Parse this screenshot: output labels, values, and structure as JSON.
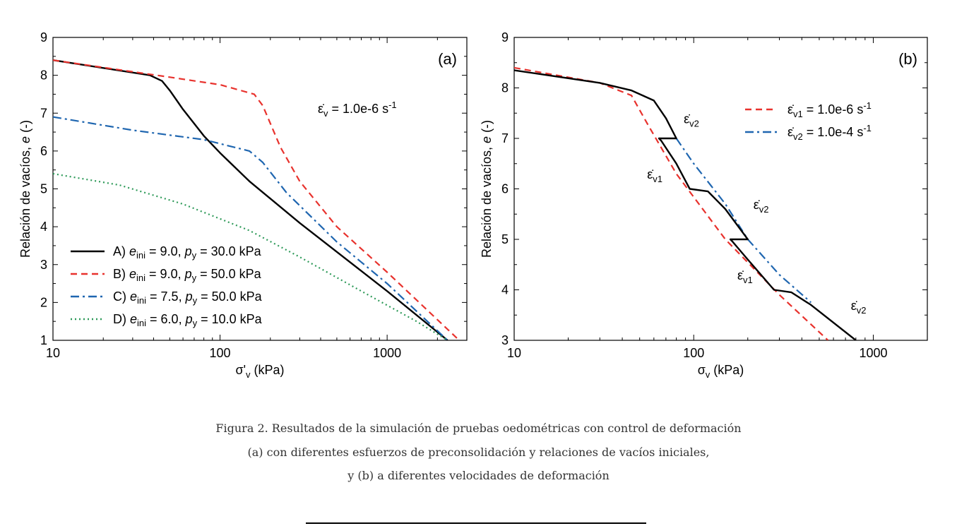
{
  "chart_data": [
    {
      "type": "line",
      "panel_label": "(a)",
      "x_scale": "log",
      "xlim": [
        10,
        3000
      ],
      "ylim": [
        1,
        9
      ],
      "xlabel": "σ'v (kPa)",
      "ylabel": "Relación de vacíos, e (-)",
      "x_ticks": [
        10,
        100,
        1000
      ],
      "x_tick_labels": [
        "10",
        "100",
        "1000"
      ],
      "y_ticks": [
        1,
        2,
        3,
        4,
        5,
        6,
        7,
        8,
        9
      ],
      "y_tick_labels": [
        "1",
        "2",
        "3",
        "4",
        "5",
        "6",
        "7",
        "8",
        "9"
      ],
      "annotation": "ε̇v = 1.0e-6 s-1",
      "legend_position": "bottom-left",
      "series": [
        {
          "name": "A) eini = 9.0, py = 30.0 kPa",
          "color": "#000000",
          "dash": "solid",
          "points": [
            [
              10,
              8.4
            ],
            [
              38,
              8.0
            ],
            [
              45,
              7.85
            ],
            [
              50,
              7.6
            ],
            [
              60,
              7.1
            ],
            [
              80,
              6.4
            ],
            [
              100,
              5.95
            ],
            [
              150,
              5.2
            ],
            [
              300,
              4.1
            ],
            [
              1000,
              2.3
            ],
            [
              2300,
              1.0
            ]
          ]
        },
        {
          "name": "B) eini = 9.0, py = 50.0 kPa",
          "color": "#e8322d",
          "dash": "dashed",
          "points": [
            [
              10,
              8.4
            ],
            [
              50,
              7.95
            ],
            [
              100,
              7.75
            ],
            [
              160,
              7.5
            ],
            [
              180,
              7.2
            ],
            [
              230,
              6.1
            ],
            [
              300,
              5.2
            ],
            [
              500,
              4.0
            ],
            [
              1000,
              2.8
            ],
            [
              2700,
              1.0
            ]
          ]
        },
        {
          "name": "C) eini = 7.5, py = 50.0 kPa",
          "color": "#1f66b0",
          "dash": "dashdot",
          "points": [
            [
              10,
              6.9
            ],
            [
              30,
              6.55
            ],
            [
              80,
              6.3
            ],
            [
              150,
              6.0
            ],
            [
              180,
              5.7
            ],
            [
              250,
              4.9
            ],
            [
              500,
              3.6
            ],
            [
              1000,
              2.5
            ],
            [
              2300,
              1.0
            ]
          ]
        },
        {
          "name": "D) eini = 6.0, py = 10.0 kPa",
          "color": "#2e9a59",
          "dash": "dotted",
          "points": [
            [
              10,
              5.4
            ],
            [
              25,
              5.1
            ],
            [
              60,
              4.6
            ],
            [
              150,
              3.9
            ],
            [
              300,
              3.2
            ],
            [
              700,
              2.3
            ],
            [
              1500,
              1.5
            ],
            [
              2300,
              1.0
            ]
          ]
        }
      ]
    },
    {
      "type": "line",
      "panel_label": "(b)",
      "x_scale": "log",
      "xlim": [
        10,
        2000
      ],
      "ylim": [
        3,
        9
      ],
      "xlabel": "σv (kPa)",
      "ylabel": "Relación de vacíos, e (-)",
      "x_ticks": [
        10,
        100,
        1000
      ],
      "x_tick_labels": [
        "10",
        "100",
        "1000"
      ],
      "y_ticks": [
        3,
        4,
        5,
        6,
        7,
        8,
        9
      ],
      "y_tick_labels": [
        "3",
        "4",
        "5",
        "6",
        "7",
        "8",
        "9"
      ],
      "legend_position": "top-right",
      "series": [
        {
          "name": "ε̇v1 = 1.0e-6 s-1",
          "color": "#e8322d",
          "dash": "dashed",
          "points": [
            [
              10,
              8.4
            ],
            [
              30,
              8.1
            ],
            [
              45,
              7.85
            ],
            [
              55,
              7.3
            ],
            [
              80,
              6.3
            ],
            [
              150,
              5.0
            ],
            [
              300,
              3.9
            ],
            [
              560,
              3.0
            ]
          ]
        },
        {
          "name": "ε̇v2 = 1.0e-4 s-1",
          "color": "#1f66b0",
          "dash": "dashdot",
          "points": [
            [
              80,
              7.0
            ],
            [
              100,
              6.5
            ],
            [
              150,
              5.7
            ],
            [
              200,
              5.0
            ],
            [
              300,
              4.3
            ],
            [
              450,
              3.75
            ]
          ]
        },
        {
          "name": "",
          "color": "#000000",
          "dash": "solid",
          "points": [
            [
              10,
              8.35
            ],
            [
              30,
              8.1
            ],
            [
              45,
              7.95
            ],
            [
              60,
              7.75
            ],
            [
              70,
              7.4
            ],
            [
              80,
              7.0
            ],
            [
              64,
              7.0
            ],
            [
              66,
              6.95
            ],
            [
              80,
              6.5
            ],
            [
              95,
              6.0
            ],
            [
              120,
              5.95
            ],
            [
              150,
              5.6
            ],
            [
              200,
              5.0
            ],
            [
              160,
              5.0
            ],
            [
              165,
              4.95
            ],
            [
              200,
              4.6
            ],
            [
              280,
              4.0
            ],
            [
              350,
              3.95
            ],
            [
              450,
              3.7
            ],
            [
              800,
              3.0
            ]
          ]
        }
      ],
      "curve_labels": [
        {
          "text": "ε̇v2",
          "x": 88,
          "y": 7.3
        },
        {
          "text": "ε̇v1",
          "x": 55,
          "y": 6.2
        },
        {
          "text": "ε̇v2",
          "x": 215,
          "y": 5.6
        },
        {
          "text": "ε̇v1",
          "x": 175,
          "y": 4.2
        },
        {
          "text": "ε̇v2",
          "x": 750,
          "y": 3.6
        }
      ]
    }
  ],
  "caption": {
    "line1": "Figura 2. Resultados de la simulación de pruebas oedométricas con control de deformación",
    "line2": "(a) con diferentes esfuerzos de preconsolidación y relaciones de vacíos iniciales,",
    "line3": "y (b) a diferentes velocidades de deformación"
  }
}
